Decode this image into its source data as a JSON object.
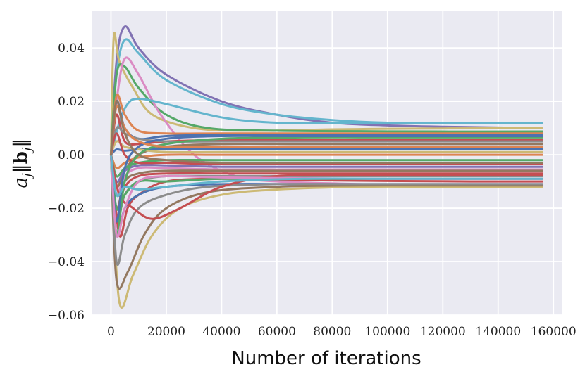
{
  "chart_data": {
    "type": "line",
    "title": "",
    "xlabel": "Number of iterations",
    "ylabel": "a_j ||b_j||",
    "xlim": [
      -7000,
      163000
    ],
    "ylim": [
      -0.06,
      0.054
    ],
    "grid": true,
    "legend": "none",
    "background": "#eaeaf2",
    "grid_color": "#ffffff",
    "xticks": [
      0,
      20000,
      40000,
      60000,
      80000,
      100000,
      120000,
      140000,
      160000
    ],
    "xtick_labels": [
      "0",
      "20000",
      "40000",
      "60000",
      "80000",
      "100000",
      "120000",
      "140000",
      "160000"
    ],
    "yticks": [
      -0.06,
      -0.04,
      -0.02,
      0.0,
      0.02,
      0.04
    ],
    "ytick_labels": [
      "−0.06",
      "−0.04",
      "−0.02",
      "0.00",
      "0.02",
      "0.04"
    ],
    "series": [
      {
        "name": "s1",
        "color": "#8172b3",
        "x": [
          0,
          2000,
          5000,
          10000,
          20000,
          40000,
          60000,
          80000,
          100000,
          120000,
          140000,
          156000
        ],
        "values": [
          0.0,
          0.035,
          0.048,
          0.04,
          0.03,
          0.02,
          0.015,
          0.012,
          0.011,
          0.0105,
          0.0102,
          0.01
        ]
      },
      {
        "name": "s2",
        "color": "#64b5cd",
        "x": [
          0,
          2000,
          5000,
          10000,
          20000,
          40000,
          60000,
          80000,
          100000,
          120000,
          140000,
          156000
        ],
        "values": [
          0.0,
          0.03,
          0.043,
          0.038,
          0.028,
          0.019,
          0.015,
          0.013,
          0.012,
          0.012,
          0.012,
          0.012
        ]
      },
      {
        "name": "s3",
        "color": "#ccb974",
        "x": [
          0,
          1000,
          3000,
          8000,
          15000,
          30000,
          50000,
          80000,
          110000,
          140000,
          156000
        ],
        "values": [
          0.0,
          0.044,
          0.035,
          0.025,
          0.015,
          0.01,
          0.009,
          0.0095,
          0.0098,
          0.0099,
          0.01
        ]
      },
      {
        "name": "s4",
        "color": "#55a868",
        "x": [
          0,
          2000,
          5000,
          10000,
          20000,
          35000,
          60000,
          90000,
          120000,
          156000
        ],
        "values": [
          0.0,
          0.03,
          0.033,
          0.025,
          0.015,
          0.01,
          0.009,
          0.0088,
          0.0087,
          0.0087
        ]
      },
      {
        "name": "s5",
        "color": "#da8bc3",
        "x": [
          0,
          2000,
          5000,
          10000,
          18000,
          30000,
          45000,
          60000,
          90000,
          120000,
          156000
        ],
        "values": [
          0.0,
          0.02,
          0.036,
          0.03,
          0.015,
          0.0,
          -0.008,
          -0.01,
          -0.011,
          -0.012,
          -0.012
        ]
      },
      {
        "name": "s6",
        "color": "#64b5cd",
        "x": [
          0,
          3000,
          6000,
          10000,
          20000,
          40000,
          60000,
          90000,
          120000,
          156000
        ],
        "values": [
          0.0,
          0.012,
          0.019,
          0.021,
          0.019,
          0.014,
          0.012,
          0.012,
          0.012,
          0.0118
        ]
      },
      {
        "name": "s7",
        "color": "#dd8452",
        "x": [
          0,
          2000,
          5000,
          10000,
          20000,
          40000,
          70000,
          100000,
          130000,
          156000
        ],
        "values": [
          0.0,
          0.022,
          0.015,
          0.009,
          0.008,
          0.008,
          0.008,
          0.008,
          0.008,
          0.008
        ]
      },
      {
        "name": "s8",
        "color": "#4c72b0",
        "x": [
          0,
          2000,
          5000,
          10000,
          20000,
          40000,
          70000,
          100000,
          130000,
          156000
        ],
        "values": [
          0.0,
          0.02,
          0.01,
          0.006,
          0.007,
          0.0075,
          0.0075,
          0.0075,
          0.0075,
          0.0075
        ]
      },
      {
        "name": "s9",
        "color": "#c44e52",
        "x": [
          0,
          2000,
          5000,
          10000,
          20000,
          40000,
          70000,
          100000,
          130000,
          156000
        ],
        "values": [
          0.0,
          0.015,
          0.005,
          0.004,
          0.005,
          0.0055,
          0.0055,
          0.0055,
          0.0055,
          0.0055
        ]
      },
      {
        "name": "s10",
        "color": "#8c8c8c",
        "x": [
          0,
          2000,
          5000,
          10000,
          20000,
          40000,
          70000,
          100000,
          130000,
          156000
        ],
        "values": [
          0.0,
          0.01,
          0.008,
          0.006,
          0.005,
          0.005,
          0.005,
          0.005,
          0.005,
          0.005
        ]
      },
      {
        "name": "s11",
        "color": "#937860",
        "x": [
          0,
          2000,
          5000,
          10000,
          20000,
          40000,
          70000,
          100000,
          130000,
          156000
        ],
        "values": [
          0.0,
          -0.012,
          -0.006,
          0.0,
          0.003,
          0.004,
          0.004,
          0.004,
          0.004,
          0.004
        ]
      },
      {
        "name": "s12",
        "color": "#4c72b0",
        "x": [
          0,
          2000,
          5000,
          10000,
          20000,
          40000,
          70000,
          100000,
          130000,
          156000
        ],
        "values": [
          0.0,
          0.002,
          0.0015,
          0.002,
          0.002,
          0.002,
          0.002,
          0.002,
          0.002,
          0.002
        ]
      },
      {
        "name": "s13",
        "color": "#ccb974",
        "x": [
          0,
          2000,
          5000,
          10000,
          20000,
          40000,
          70000,
          100000,
          130000,
          156000
        ],
        "values": [
          0.0,
          0.005,
          0.003,
          0.002,
          0.001,
          0.001,
          0.001,
          0.001,
          0.001,
          0.001
        ]
      },
      {
        "name": "s14",
        "color": "#dd8452",
        "x": [
          0,
          2000,
          5000,
          10000,
          20000,
          40000,
          70000,
          100000,
          130000,
          156000
        ],
        "values": [
          0.0,
          -0.005,
          -0.003,
          -0.001,
          0.0,
          0.0,
          0.0,
          0.0,
          0.0,
          0.0
        ]
      },
      {
        "name": "s15",
        "color": "#55a868",
        "x": [
          0,
          2000,
          5000,
          10000,
          20000,
          40000,
          70000,
          100000,
          130000,
          156000
        ],
        "values": [
          0.0,
          -0.008,
          -0.005,
          -0.003,
          -0.002,
          -0.002,
          -0.002,
          -0.002,
          -0.002,
          -0.002
        ]
      },
      {
        "name": "s16",
        "color": "#c44e52",
        "x": [
          0,
          2000,
          5000,
          10000,
          20000,
          40000,
          70000,
          100000,
          130000,
          156000
        ],
        "values": [
          0.0,
          0.008,
          0.0,
          -0.003,
          -0.003,
          -0.0035,
          -0.0035,
          -0.0035,
          -0.0035,
          -0.0035
        ]
      },
      {
        "name": "s17",
        "color": "#8172b3",
        "x": [
          0,
          2000,
          5000,
          10000,
          20000,
          40000,
          70000,
          100000,
          130000,
          156000
        ],
        "values": [
          0.0,
          -0.01,
          -0.006,
          -0.004,
          -0.004,
          -0.0045,
          -0.0045,
          -0.0045,
          -0.0045,
          -0.0045
        ]
      },
      {
        "name": "s18",
        "color": "#da8bc3",
        "x": [
          0,
          2000,
          5000,
          10000,
          20000,
          40000,
          70000,
          100000,
          130000,
          156000
        ],
        "values": [
          0.0,
          -0.015,
          -0.008,
          -0.005,
          -0.005,
          -0.0055,
          -0.0055,
          -0.0055,
          -0.0055,
          -0.0055
        ]
      },
      {
        "name": "s19",
        "color": "#937860",
        "x": [
          0,
          2000,
          5000,
          10000,
          20000,
          40000,
          70000,
          100000,
          130000,
          156000
        ],
        "values": [
          0.0,
          -0.02,
          -0.01,
          -0.007,
          -0.006,
          -0.006,
          -0.006,
          -0.006,
          -0.006,
          -0.006
        ]
      },
      {
        "name": "s20",
        "color": "#c44e52",
        "x": [
          0,
          2000,
          5000,
          10000,
          20000,
          40000,
          70000,
          100000,
          130000,
          156000
        ],
        "values": [
          0.0,
          -0.02,
          -0.012,
          -0.008,
          -0.007,
          -0.007,
          -0.007,
          -0.007,
          -0.007,
          -0.007
        ]
      },
      {
        "name": "s21",
        "color": "#8c8c8c",
        "x": [
          0,
          2000,
          5000,
          10000,
          20000,
          40000,
          70000,
          100000,
          130000,
          156000
        ],
        "values": [
          0.0,
          -0.025,
          -0.015,
          -0.01,
          -0.008,
          -0.008,
          -0.008,
          -0.008,
          -0.008,
          -0.008
        ]
      },
      {
        "name": "s22",
        "color": "#c44e52",
        "x": [
          0,
          3000,
          6000,
          10000,
          20000,
          40000,
          70000,
          100000,
          130000,
          156000
        ],
        "values": [
          0.0,
          -0.03,
          -0.02,
          -0.015,
          -0.01,
          -0.009,
          -0.0095,
          -0.0098,
          -0.01,
          -0.01
        ]
      },
      {
        "name": "s23",
        "color": "#55a868",
        "x": [
          0,
          2000,
          5000,
          10000,
          20000,
          40000,
          70000,
          100000,
          130000,
          156000
        ],
        "values": [
          0.0,
          -0.02,
          -0.015,
          -0.01,
          -0.01,
          -0.009,
          -0.009,
          -0.009,
          -0.009,
          -0.009
        ]
      },
      {
        "name": "s24",
        "color": "#4c72b0",
        "x": [
          0,
          2000,
          5000,
          10000,
          20000,
          40000,
          70000,
          100000,
          130000,
          156000
        ],
        "values": [
          0.0,
          -0.03,
          -0.02,
          -0.015,
          -0.012,
          -0.011,
          -0.011,
          -0.011,
          -0.011,
          -0.011
        ]
      },
      {
        "name": "s25",
        "color": "#ccb974",
        "x": [
          0,
          3000,
          8000,
          15000,
          25000,
          40000,
          60000,
          90000,
          120000,
          156000
        ],
        "values": [
          0.0,
          -0.055,
          -0.045,
          -0.03,
          -0.02,
          -0.015,
          -0.013,
          -0.012,
          -0.012,
          -0.012
        ]
      },
      {
        "name": "s26",
        "color": "#937860",
        "x": [
          0,
          2000,
          6000,
          12000,
          20000,
          35000,
          60000,
          90000,
          120000,
          156000
        ],
        "values": [
          0.0,
          -0.047,
          -0.044,
          -0.03,
          -0.02,
          -0.014,
          -0.012,
          -0.0115,
          -0.0115,
          -0.0115
        ]
      },
      {
        "name": "s27",
        "color": "#8c8c8c",
        "x": [
          0,
          2000,
          5000,
          10000,
          20000,
          35000,
          60000,
          90000,
          120000,
          156000
        ],
        "values": [
          0.0,
          -0.04,
          -0.03,
          -0.02,
          -0.015,
          -0.012,
          -0.011,
          -0.011,
          -0.011,
          -0.011
        ]
      },
      {
        "name": "s28",
        "color": "#c44e52",
        "x": [
          0,
          3000,
          8000,
          15000,
          25000,
          40000,
          60000,
          90000,
          120000,
          156000
        ],
        "values": [
          0.0,
          -0.015,
          -0.02,
          -0.024,
          -0.02,
          -0.012,
          -0.008,
          -0.0075,
          -0.0075,
          -0.0075
        ]
      },
      {
        "name": "s29",
        "color": "#55a868",
        "x": [
          0,
          2000,
          5000,
          10000,
          20000,
          40000,
          70000,
          100000,
          130000,
          156000
        ],
        "values": [
          0.0,
          -0.03,
          -0.01,
          0.0,
          0.004,
          0.006,
          0.0065,
          0.0065,
          0.0065,
          0.0065
        ]
      },
      {
        "name": "s30",
        "color": "#4c72b0",
        "x": [
          0,
          2000,
          5000,
          10000,
          20000,
          40000,
          70000,
          100000,
          130000,
          156000
        ],
        "values": [
          0.0,
          -0.025,
          -0.005,
          0.003,
          0.006,
          0.007,
          0.007,
          0.007,
          0.007,
          0.007
        ]
      },
      {
        "name": "s31",
        "color": "#da8bc3",
        "x": [
          0,
          2000,
          5000,
          10000,
          20000,
          40000,
          70000,
          100000,
          130000,
          156000
        ],
        "values": [
          0.0,
          -0.03,
          -0.02,
          -0.01,
          -0.008,
          -0.0085,
          -0.0088,
          -0.009,
          -0.009,
          -0.009
        ]
      },
      {
        "name": "s32",
        "color": "#64b5cd",
        "x": [
          0,
          2000,
          5000,
          10000,
          20000,
          40000,
          70000,
          100000,
          130000,
          156000
        ],
        "values": [
          0.0,
          -0.015,
          -0.012,
          -0.013,
          -0.012,
          -0.01,
          -0.009,
          -0.009,
          -0.009,
          -0.009
        ]
      },
      {
        "name": "s33",
        "color": "#dd8452",
        "x": [
          0,
          2000,
          5000,
          10000,
          20000,
          40000,
          70000,
          100000,
          130000,
          156000
        ],
        "values": [
          0.0,
          0.018,
          0.01,
          0.005,
          0.003,
          0.003,
          0.003,
          0.003,
          0.003,
          0.003
        ]
      },
      {
        "name": "s34",
        "color": "#937860",
        "x": [
          0,
          2000,
          5000,
          10000,
          20000,
          40000,
          70000,
          100000,
          130000,
          156000
        ],
        "values": [
          0.0,
          0.02,
          0.008,
          0.0,
          -0.002,
          -0.003,
          -0.003,
          -0.003,
          -0.003,
          -0.003
        ]
      }
    ]
  }
}
